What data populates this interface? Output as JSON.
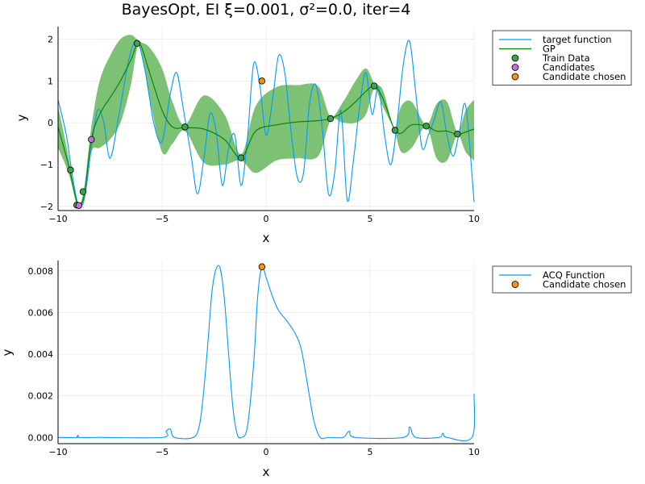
{
  "colors": {
    "target": "#009AFA",
    "gp": "#008000",
    "gp_band": "#6FBA66",
    "train": "#3DA44D",
    "candidates": "#C271D2",
    "chosen": "#F39500",
    "grid": "#EBEBEB"
  },
  "chart_data": [
    {
      "type": "line",
      "title": "BayesOpt, EI ξ=0.001, σ²=0.0, iter=4",
      "xlabel": "x",
      "ylabel": "y",
      "xlim": [
        -10,
        10
      ],
      "ylim": [
        -2.1,
        2.3
      ],
      "xticks": [
        -10,
        -5,
        0,
        5,
        10
      ],
      "xtick_labels": [
        "−10",
        "−5",
        "0",
        "5",
        "10"
      ],
      "yticks": [
        -2,
        -1,
        0,
        1,
        2
      ],
      "ytick_labels": [
        "−2",
        "−1",
        "0",
        "1",
        "2"
      ],
      "grid": true,
      "legend_position": "outside-top-right",
      "legend": [
        "target function",
        "GP",
        "Train Data",
        "Candidates",
        "Candidate chosen"
      ],
      "target_function": {
        "name": "target function",
        "x": [
          -10,
          -9.6,
          -9.3,
          -9.0,
          -8.7,
          -8.4,
          -8.1,
          -7.8,
          -7.5,
          -7.1,
          -6.6,
          -6.2,
          -5.8,
          -5.4,
          -5.0,
          -4.6,
          -4.3,
          -4.0,
          -3.6,
          -3.3,
          -3.0,
          -2.7,
          -2.4,
          -2.1,
          -1.8,
          -1.5,
          -1.2,
          -0.9,
          -0.6,
          -0.3,
          0.0,
          0.3,
          0.6,
          0.9,
          1.2,
          1.5,
          1.8,
          2.1,
          2.4,
          2.7,
          3.0,
          3.3,
          3.6,
          3.9,
          4.2,
          4.5,
          4.8,
          5.1,
          5.4,
          5.7,
          6.0,
          6.3,
          6.6,
          6.9,
          7.2,
          7.5,
          7.8,
          8.1,
          8.4,
          8.7,
          9.0,
          9.3,
          9.6,
          10.0
        ],
        "y": [
          0.55,
          -0.3,
          -1.3,
          -2.0,
          -1.7,
          -0.6,
          0.3,
          0.0,
          -0.85,
          0.1,
          1.5,
          1.95,
          1.2,
          0.0,
          -0.45,
          0.7,
          1.2,
          0.4,
          -0.8,
          -1.7,
          -0.9,
          0.2,
          -0.2,
          -1.5,
          -0.6,
          -0.3,
          -1.5,
          -0.4,
          1.4,
          0.9,
          -0.3,
          0.5,
          1.6,
          1.2,
          -0.2,
          -1.3,
          -1.2,
          0.5,
          0.9,
          -0.1,
          -1.7,
          -1.2,
          0.3,
          -1.85,
          -0.9,
          0.4,
          1.2,
          0.2,
          0.85,
          -0.3,
          -1.0,
          0.0,
          1.4,
          1.95,
          0.7,
          -0.6,
          -0.3,
          0.1,
          0.5,
          -0.3,
          -0.8,
          -0.2,
          0.4,
          -1.9
        ]
      },
      "gp_mean": {
        "name": "GP",
        "x": [
          -10,
          -9.5,
          -9.1,
          -8.9,
          -8.7,
          -8.4,
          -8.0,
          -7.5,
          -7.0,
          -6.5,
          -6.1,
          -5.6,
          -5.0,
          -4.5,
          -3.9,
          -3.0,
          -2.0,
          -1.2,
          -0.5,
          0.5,
          1.5,
          2.5,
          3.1,
          3.7,
          4.3,
          4.8,
          5.2,
          5.6,
          6.0,
          6.2,
          6.5,
          7.0,
          7.7,
          8.2,
          8.7,
          9.2,
          9.6,
          10.0
        ],
        "y": [
          -0.1,
          -1.0,
          -1.9,
          -1.95,
          -1.6,
          -0.4,
          0.2,
          0.6,
          1.0,
          1.5,
          1.9,
          1.2,
          0.3,
          -0.1,
          -0.12,
          -0.15,
          -0.4,
          -0.84,
          -0.2,
          -0.05,
          0.02,
          0.05,
          0.1,
          0.25,
          0.5,
          0.75,
          0.88,
          0.6,
          0.05,
          -0.18,
          -0.25,
          -0.05,
          -0.08,
          -0.2,
          -0.2,
          -0.28,
          -0.22,
          -0.15
        ]
      },
      "gp_band": {
        "x": [
          -10,
          -9.5,
          -9.1,
          -8.9,
          -8.7,
          -8.4,
          -8.0,
          -7.5,
          -7.0,
          -6.5,
          -6.1,
          -5.6,
          -5.0,
          -4.5,
          -3.9,
          -3.0,
          -2.0,
          -1.2,
          -0.5,
          0.5,
          1.5,
          2.5,
          3.1,
          3.7,
          4.3,
          4.8,
          5.2,
          5.6,
          6.0,
          6.2,
          6.5,
          7.0,
          7.7,
          8.2,
          8.7,
          9.2,
          9.6,
          10.0
        ],
        "upper": [
          0.4,
          -0.8,
          -1.9,
          -1.9,
          -1.4,
          -0.1,
          1.0,
          1.6,
          2.0,
          2.1,
          1.95,
          1.8,
          1.3,
          0.5,
          -0.05,
          0.65,
          0.2,
          -0.75,
          0.4,
          0.85,
          0.9,
          0.88,
          0.15,
          0.5,
          1.0,
          1.3,
          0.95,
          0.8,
          0.1,
          -0.15,
          0.4,
          0.5,
          -0.05,
          0.45,
          0.5,
          -0.22,
          0.3,
          0.55
        ],
        "lower": [
          -0.6,
          -1.2,
          -1.95,
          -2.0,
          -1.8,
          -0.7,
          -0.6,
          -0.4,
          0.0,
          0.9,
          1.85,
          0.6,
          -0.7,
          -0.5,
          -0.2,
          -0.95,
          -1.0,
          -0.9,
          -1.2,
          -0.9,
          -0.85,
          -0.8,
          0.05,
          0.0,
          0.0,
          0.2,
          0.8,
          0.4,
          0.0,
          -0.2,
          -0.7,
          -0.6,
          -0.1,
          -0.85,
          -0.9,
          -0.3,
          -0.7,
          -0.9
        ]
      },
      "train_data": {
        "name": "Train Data",
        "x": [
          -9.4,
          -9.1,
          -8.8,
          -6.2,
          -3.9,
          -1.2,
          3.1,
          5.2,
          6.2,
          7.7,
          9.2
        ],
        "y": [
          -1.13,
          -1.97,
          -1.65,
          1.9,
          -0.1,
          -0.84,
          0.1,
          0.88,
          -0.18,
          -0.08,
          -0.27
        ]
      },
      "candidates": {
        "name": "Candidates",
        "x": [
          -9.0,
          -8.4
        ],
        "y": [
          -1.98,
          -0.4
        ]
      },
      "candidate_chosen": {
        "name": "Candidate chosen",
        "x": [
          -0.2
        ],
        "y": [
          1.0
        ]
      }
    },
    {
      "type": "line",
      "xlabel": "x",
      "ylabel": "y",
      "xlim": [
        -10,
        10
      ],
      "ylim": [
        -0.0003,
        0.0085
      ],
      "xticks": [
        -10,
        -5,
        0,
        5,
        10
      ],
      "xtick_labels": [
        "−10",
        "−5",
        "0",
        "5",
        "10"
      ],
      "yticks": [
        0.0,
        0.002,
        0.004,
        0.006,
        0.008
      ],
      "ytick_labels": [
        "0.000",
        "0.002",
        "0.004",
        "0.006",
        "0.008"
      ],
      "grid": true,
      "legend_position": "outside-top-right",
      "legend": [
        "ACQ Function",
        "Candidate chosen"
      ],
      "acq_function": {
        "name": "ACQ Function",
        "x": [
          -10,
          -9.1,
          -9.05,
          -9.0,
          -8.0,
          -5.0,
          -4.8,
          -4.6,
          -4.4,
          -3.5,
          -3.2,
          -3.0,
          -2.8,
          -2.6,
          -2.4,
          -2.2,
          -2.0,
          -1.8,
          -1.6,
          -1.4,
          -1.2,
          -0.9,
          -0.6,
          -0.4,
          -0.2,
          0.0,
          0.3,
          0.6,
          1.0,
          1.4,
          1.7,
          2.0,
          2.3,
          2.6,
          3.0,
          3.7,
          4.0,
          4.3,
          6.6,
          6.9,
          7.2,
          8.3,
          8.5,
          8.7,
          9.9,
          10.0
        ],
        "y": [
          0.0,
          0.0,
          0.0001,
          0.0,
          0.0,
          0.0,
          0.0003,
          0.0004,
          0.0,
          0.0,
          0.0006,
          0.0022,
          0.0045,
          0.007,
          0.0081,
          0.0081,
          0.0066,
          0.004,
          0.0015,
          0.0002,
          0.0,
          0.0005,
          0.0035,
          0.0068,
          0.0082,
          0.0077,
          0.0068,
          0.0061,
          0.0056,
          0.005,
          0.0042,
          0.0025,
          0.0008,
          0.0,
          0.0,
          0.0,
          0.0003,
          0.0,
          0.0,
          0.0005,
          0.0,
          0.0,
          0.0002,
          0.0,
          0.0,
          0.0021
        ]
      },
      "candidate_chosen": {
        "name": "Candidate chosen",
        "x": [
          -0.2
        ],
        "y": [
          0.0082
        ]
      }
    }
  ]
}
